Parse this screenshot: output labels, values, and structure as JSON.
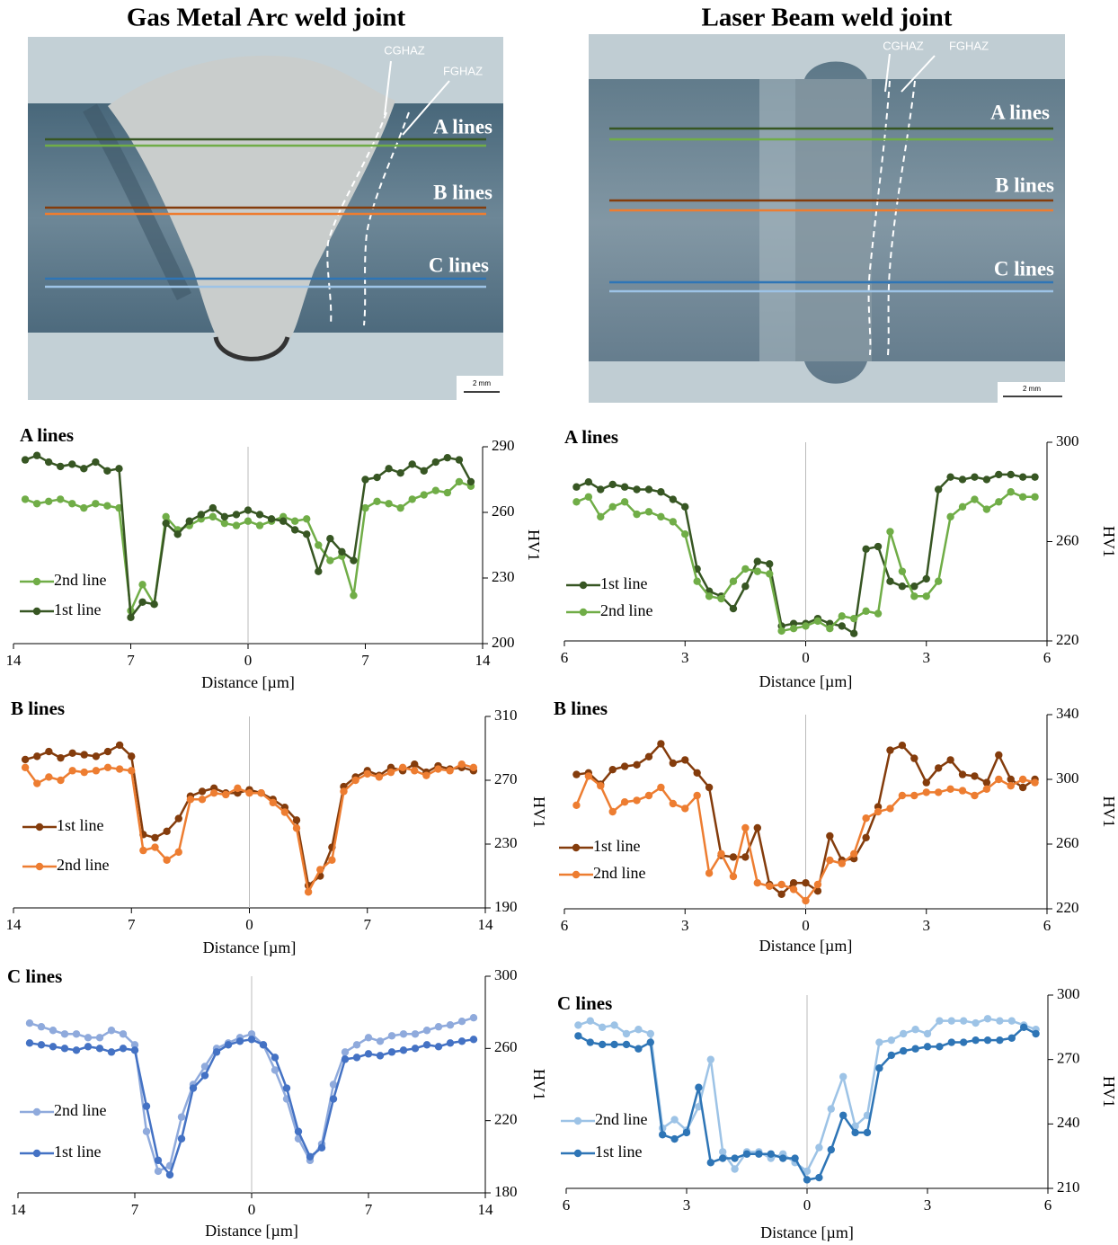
{
  "images": [
    {
      "title": "Gas Metal Arc weld joint",
      "labels": [
        "CGHAZ",
        "FGHAZ",
        "A lines",
        "B lines",
        "C lines",
        "2 mm"
      ]
    },
    {
      "title": "Laser Beam weld joint",
      "labels": [
        "CGHAZ",
        "FGHAZ",
        "A lines",
        "B lines",
        "C lines",
        "2 mm"
      ]
    }
  ],
  "chart_data": [
    {
      "type": "line",
      "title": "A lines",
      "xlabel": "Distance [µm]",
      "ylabel": "HV1",
      "legend": "lower left",
      "x": [
        -13.3,
        -12.6,
        -11.9,
        -11.2,
        -10.5,
        -9.8,
        -9.1,
        -8.4,
        -7.7,
        -7.0,
        -6.3,
        -5.6,
        -4.9,
        -4.2,
        -3.5,
        -2.8,
        -2.1,
        -1.4,
        -0.7,
        0,
        0.7,
        1.4,
        2.1,
        2.8,
        3.5,
        4.2,
        4.9,
        5.6,
        6.3,
        7.0,
        7.7,
        8.4,
        9.1,
        9.8,
        10.5,
        11.2,
        11.9,
        12.6,
        13.3
      ],
      "xlim": [
        -14,
        14
      ],
      "xticks": [
        {
          "value": -14,
          "label": "14"
        },
        {
          "value": -7,
          "label": "7"
        },
        0,
        7,
        14
      ],
      "ylim": [
        200,
        290
      ],
      "yticks": [
        200,
        230,
        260,
        290
      ],
      "series": [
        {
          "name": "2nd line",
          "color": "#70ad47",
          "values": [
            266,
            264,
            265,
            266,
            264,
            262,
            264,
            263,
            262,
            215,
            227,
            218,
            258,
            252,
            254,
            257,
            258,
            255,
            254,
            256,
            254,
            256,
            258,
            256,
            257,
            245,
            238,
            240,
            222,
            262,
            265,
            264,
            262,
            266,
            268,
            270,
            269,
            274,
            272
          ]
        },
        {
          "name": "1st line",
          "color": "#375623",
          "values": [
            284,
            286,
            283,
            281,
            282,
            280,
            283,
            279,
            280,
            212,
            219,
            218,
            255,
            250,
            256,
            259,
            262,
            258,
            259,
            261,
            259,
            257,
            256,
            252,
            250,
            233,
            248,
            242,
            238,
            275,
            276,
            280,
            278,
            282,
            279,
            283,
            285,
            284,
            274
          ]
        }
      ]
    },
    {
      "type": "line",
      "title": "A lines",
      "xlabel": "Distance [µm]",
      "ylabel": "HV1",
      "legend": "lower left",
      "x": [
        -5.7,
        -5.4,
        -5.1,
        -4.8,
        -4.5,
        -4.2,
        -3.9,
        -3.6,
        -3.3,
        -3.0,
        -2.7,
        -2.4,
        -2.1,
        -1.8,
        -1.5,
        -1.2,
        -0.9,
        -0.6,
        -0.3,
        0,
        0.3,
        0.6,
        0.9,
        1.2,
        1.5,
        1.8,
        2.1,
        2.4,
        2.7,
        3.0,
        3.3,
        3.6,
        3.9,
        4.2,
        4.5,
        4.8,
        5.1,
        5.4,
        5.7
      ],
      "xlim": [
        -6,
        6
      ],
      "xticks": [
        {
          "value": -6,
          "label": "6"
        },
        {
          "value": -3,
          "label": "3"
        },
        0,
        3,
        6
      ],
      "ylim": [
        220,
        300
      ],
      "yticks": [
        220,
        260,
        300
      ],
      "series": [
        {
          "name": "1st line",
          "color": "#375623",
          "values": [
            282,
            284,
            281,
            283,
            282,
            281,
            281,
            280,
            277,
            274,
            249,
            240,
            238,
            233,
            242,
            252,
            251,
            226,
            227,
            227,
            229,
            227,
            226,
            223,
            257,
            258,
            244,
            242,
            242,
            245,
            281,
            286,
            285,
            286,
            285,
            287,
            287,
            286,
            286
          ]
        },
        {
          "name": "2nd line",
          "color": "#70ad47",
          "values": [
            276,
            278,
            270,
            274,
            276,
            271,
            272,
            270,
            268,
            263,
            244,
            238,
            237,
            244,
            249,
            248,
            247,
            224,
            225,
            226,
            228,
            225,
            230,
            229,
            232,
            231,
            264,
            248,
            238,
            238,
            244,
            270,
            274,
            277,
            273,
            276,
            280,
            278,
            278
          ]
        }
      ]
    },
    {
      "type": "line",
      "title": "B lines",
      "xlabel": "Distance [µm]",
      "ylabel": "HV1",
      "legend": "lower left",
      "x": [
        -13.3,
        -12.6,
        -11.9,
        -11.2,
        -10.5,
        -9.8,
        -9.1,
        -8.4,
        -7.7,
        -7.0,
        -6.3,
        -5.6,
        -4.9,
        -4.2,
        -3.5,
        -2.8,
        -2.1,
        -1.4,
        -0.7,
        0,
        0.7,
        1.4,
        2.1,
        2.8,
        3.5,
        4.2,
        4.9,
        5.6,
        6.3,
        7.0,
        7.7,
        8.4,
        9.1,
        9.8,
        10.5,
        11.2,
        11.9,
        12.6,
        13.3
      ],
      "xlim": [
        -14,
        14
      ],
      "xticks": [
        {
          "value": -14,
          "label": "14"
        },
        {
          "value": -7,
          "label": "7"
        },
        0,
        7,
        14
      ],
      "ylim": [
        190,
        310
      ],
      "yticks": [
        190,
        230,
        270,
        310
      ],
      "series": [
        {
          "name": "1st line",
          "color": "#843c0c",
          "values": [
            283,
            285,
            288,
            284,
            287,
            286,
            285,
            288,
            292,
            285,
            236,
            234,
            238,
            246,
            260,
            263,
            265,
            262,
            262,
            264,
            262,
            258,
            253,
            245,
            204,
            210,
            228,
            266,
            272,
            276,
            273,
            278,
            276,
            280,
            275,
            279,
            277,
            278,
            276
          ]
        },
        {
          "name": "2nd line",
          "color": "#ed7d31",
          "values": [
            278,
            268,
            272,
            270,
            276,
            275,
            276,
            278,
            277,
            276,
            226,
            228,
            220,
            225,
            258,
            258,
            262,
            261,
            265,
            262,
            262,
            256,
            250,
            240,
            200,
            214,
            220,
            263,
            270,
            274,
            272,
            275,
            278,
            276,
            273,
            277,
            276,
            280,
            278
          ]
        }
      ]
    },
    {
      "type": "line",
      "title": "B lines",
      "xlabel": "Distance [µm]",
      "ylabel": "HV1",
      "legend": "lower left",
      "x": [
        -5.7,
        -5.4,
        -5.1,
        -4.8,
        -4.5,
        -4.2,
        -3.9,
        -3.6,
        -3.3,
        -3.0,
        -2.7,
        -2.4,
        -2.1,
        -1.8,
        -1.5,
        -1.2,
        -0.9,
        -0.6,
        -0.3,
        0,
        0.3,
        0.6,
        0.9,
        1.2,
        1.5,
        1.8,
        2.1,
        2.4,
        2.7,
        3.0,
        3.3,
        3.6,
        3.9,
        4.2,
        4.5,
        4.8,
        5.1,
        5.4,
        5.7
      ],
      "xlim": [
        -6,
        6
      ],
      "xticks": [
        {
          "value": -6,
          "label": "6"
        },
        {
          "value": -3,
          "label": "3"
        },
        0,
        3,
        6
      ],
      "ylim": [
        220,
        340
      ],
      "yticks": [
        220,
        260,
        300,
        340
      ],
      "series": [
        {
          "name": "1st line",
          "color": "#843c0c",
          "values": [
            303,
            304,
            297,
            306,
            308,
            309,
            314,
            322,
            310,
            312,
            304,
            295,
            253,
            252,
            252,
            270,
            235,
            229,
            236,
            236,
            231,
            265,
            250,
            251,
            264,
            283,
            318,
            321,
            313,
            298,
            307,
            312,
            303,
            302,
            298,
            315,
            300,
            295,
            300
          ]
        },
        {
          "name": "2nd line",
          "color": "#ed7d31",
          "values": [
            284,
            302,
            296,
            280,
            286,
            287,
            290,
            295,
            285,
            282,
            290,
            242,
            254,
            240,
            270,
            236,
            234,
            235,
            232,
            225,
            235,
            250,
            248,
            254,
            276,
            280,
            282,
            290,
            290,
            292,
            292,
            294,
            293,
            290,
            294,
            300,
            296,
            300,
            298
          ]
        }
      ]
    },
    {
      "type": "line",
      "title": "C lines",
      "xlabel": "Distance [µm]",
      "ylabel": "HV1",
      "legend": "lower left",
      "x": [
        -13.3,
        -12.6,
        -11.9,
        -11.2,
        -10.5,
        -9.8,
        -9.1,
        -8.4,
        -7.7,
        -7.0,
        -6.3,
        -5.6,
        -4.9,
        -4.2,
        -3.5,
        -2.8,
        -2.1,
        -1.4,
        -0.7,
        0,
        0.7,
        1.4,
        2.1,
        2.8,
        3.5,
        4.2,
        4.9,
        5.6,
        6.3,
        7.0,
        7.7,
        8.4,
        9.1,
        9.8,
        10.5,
        11.2,
        11.9,
        12.6,
        13.3
      ],
      "xlim": [
        -14,
        14
      ],
      "xticks": [
        {
          "value": -14,
          "label": "14"
        },
        {
          "value": -7,
          "label": "7"
        },
        0,
        7,
        14
      ],
      "ylim": [
        180,
        300
      ],
      "yticks": [
        180,
        220,
        260,
        300
      ],
      "series": [
        {
          "name": "2nd line",
          "color": "#8faadc",
          "values": [
            274,
            272,
            270,
            268,
            268,
            266,
            266,
            270,
            268,
            262,
            214,
            192,
            195,
            222,
            240,
            250,
            260,
            263,
            266,
            268,
            262,
            248,
            232,
            210,
            198,
            207,
            240,
            258,
            262,
            266,
            264,
            267,
            268,
            268,
            270,
            272,
            273,
            275,
            277
          ]
        },
        {
          "name": "1st line",
          "color": "#4472c4",
          "values": [
            263,
            262,
            261,
            260,
            259,
            261,
            260,
            258,
            260,
            259,
            228,
            198,
            190,
            210,
            238,
            245,
            258,
            262,
            264,
            265,
            262,
            255,
            238,
            214,
            200,
            205,
            232,
            254,
            255,
            257,
            256,
            258,
            259,
            260,
            262,
            261,
            263,
            264,
            265
          ]
        }
      ]
    },
    {
      "type": "line",
      "title": "C lines",
      "xlabel": "Distance [µm]",
      "ylabel": "HV1",
      "legend": "lower left",
      "x": [
        -5.7,
        -5.4,
        -5.1,
        -4.8,
        -4.5,
        -4.2,
        -3.9,
        -3.6,
        -3.3,
        -3.0,
        -2.7,
        -2.4,
        -2.1,
        -1.8,
        -1.5,
        -1.2,
        -0.9,
        -0.6,
        -0.3,
        0,
        0.3,
        0.6,
        0.9,
        1.2,
        1.5,
        1.8,
        2.1,
        2.4,
        2.7,
        3.0,
        3.3,
        3.6,
        3.9,
        4.2,
        4.5,
        4.8,
        5.1,
        5.4,
        5.7
      ],
      "xlim": [
        -6,
        6
      ],
      "xticks": [
        {
          "value": -6,
          "label": "6"
        },
        {
          "value": -3,
          "label": "3"
        },
        0,
        3,
        6
      ],
      "ylim": [
        210,
        300
      ],
      "yticks": [
        210,
        240,
        270,
        300
      ],
      "series": [
        {
          "name": "2nd line",
          "color": "#9dc3e6",
          "values": [
            286,
            288,
            285,
            286,
            282,
            284,
            282,
            238,
            242,
            237,
            248,
            270,
            227,
            219,
            227,
            227,
            224,
            226,
            222,
            218,
            229,
            247,
            262,
            239,
            244,
            278,
            279,
            282,
            284,
            282,
            288,
            288,
            288,
            287,
            289,
            288,
            288,
            286,
            284
          ]
        },
        {
          "name": "1st line",
          "color": "#2e75b6",
          "values": [
            281,
            278,
            277,
            277,
            277,
            275,
            278,
            235,
            233,
            236,
            257,
            222,
            224,
            224,
            226,
            226,
            226,
            224,
            224,
            214,
            215,
            228,
            244,
            236,
            236,
            266,
            272,
            274,
            275,
            276,
            276,
            278,
            278,
            279,
            279,
            279,
            280,
            285,
            282
          ]
        }
      ]
    }
  ]
}
